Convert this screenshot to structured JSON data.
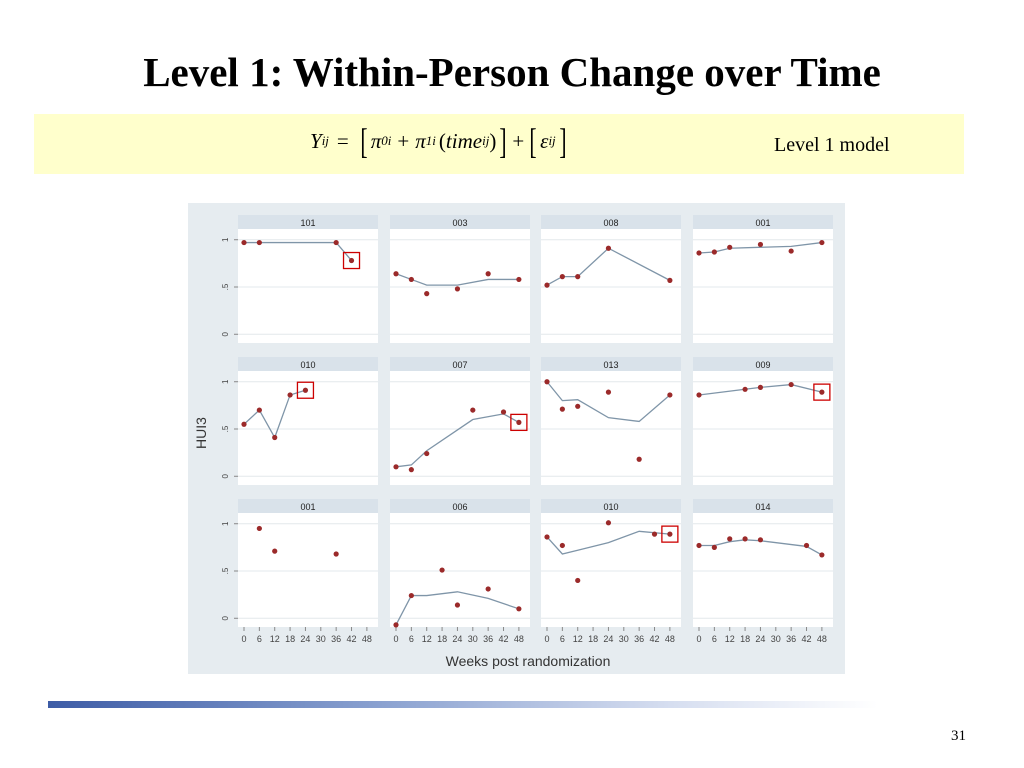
{
  "slide": {
    "title": "Level 1: Within-Person Change over Time",
    "model_label": "Level 1 model",
    "page_number": "31",
    "equation": {
      "Y": "Y",
      "Y_sub": "ij",
      "equals": "=",
      "pi": "π",
      "pi0_sub": "0i",
      "plus": "+",
      "pi1_sub": "1i",
      "time": "time",
      "time_sub": "ij",
      "eps": "ε",
      "eps_sub": "ij"
    }
  },
  "colors": {
    "model_box": "#ffffcc",
    "figure_bg": "#e6ecf0",
    "strip": "#d9e2ea",
    "point": "#9b2a2a",
    "line": "#7f95a8",
    "highlight": "#cc0000"
  },
  "chart_data": {
    "type": "scatter",
    "layout": "small-multiples 3x4",
    "xlabel": "Weeks post randomization",
    "ylabel": "HUI3",
    "xticks": [
      "0",
      "6",
      "12",
      "18",
      "24",
      "30",
      "36",
      "42",
      "48"
    ],
    "yticks": [
      "0",
      ".5",
      "1"
    ],
    "xlim": [
      0,
      50
    ],
    "ylim": [
      -0.05,
      1.05
    ],
    "panels": [
      {
        "label": "101",
        "points": [
          [
            0,
            0.97
          ],
          [
            6,
            0.97
          ],
          [
            36,
            0.97
          ],
          [
            42,
            0.78
          ]
        ],
        "fit": [
          [
            0,
            0.97
          ],
          [
            6,
            0.97
          ],
          [
            36,
            0.97
          ],
          [
            42,
            0.78
          ]
        ],
        "highlight": [
          42,
          0.78
        ]
      },
      {
        "label": "003",
        "points": [
          [
            0,
            0.64
          ],
          [
            6,
            0.58
          ],
          [
            12,
            0.43
          ],
          [
            24,
            0.48
          ],
          [
            36,
            0.64
          ],
          [
            48,
            0.58
          ]
        ],
        "fit": [
          [
            0,
            0.64
          ],
          [
            6,
            0.58
          ],
          [
            12,
            0.52
          ],
          [
            24,
            0.52
          ],
          [
            36,
            0.58
          ],
          [
            48,
            0.58
          ]
        ],
        "highlight": null
      },
      {
        "label": "008",
        "points": [
          [
            0,
            0.52
          ],
          [
            6,
            0.61
          ],
          [
            12,
            0.61
          ],
          [
            24,
            0.91
          ],
          [
            48,
            0.57
          ]
        ],
        "fit": [
          [
            0,
            0.52
          ],
          [
            6,
            0.61
          ],
          [
            12,
            0.61
          ],
          [
            24,
            0.91
          ],
          [
            48,
            0.57
          ]
        ],
        "highlight": null
      },
      {
        "label": "001",
        "points": [
          [
            0,
            0.86
          ],
          [
            6,
            0.87
          ],
          [
            12,
            0.92
          ],
          [
            24,
            0.95
          ],
          [
            36,
            0.88
          ],
          [
            48,
            0.97
          ]
        ],
        "fit": [
          [
            0,
            0.86
          ],
          [
            6,
            0.87
          ],
          [
            12,
            0.91
          ],
          [
            36,
            0.93
          ],
          [
            48,
            0.97
          ]
        ],
        "highlight": null
      },
      {
        "label": "010",
        "points": [
          [
            0,
            0.55
          ],
          [
            6,
            0.7
          ],
          [
            12,
            0.41
          ],
          [
            18,
            0.86
          ],
          [
            24,
            0.91
          ]
        ],
        "fit": [
          [
            0,
            0.55
          ],
          [
            6,
            0.7
          ],
          [
            12,
            0.41
          ],
          [
            18,
            0.86
          ],
          [
            24,
            0.91
          ]
        ],
        "highlight": [
          24,
          0.91
        ]
      },
      {
        "label": "007",
        "points": [
          [
            0,
            0.1
          ],
          [
            6,
            0.07
          ],
          [
            12,
            0.24
          ],
          [
            30,
            0.7
          ],
          [
            42,
            0.68
          ],
          [
            48,
            0.57
          ]
        ],
        "fit": [
          [
            0,
            0.1
          ],
          [
            6,
            0.12
          ],
          [
            12,
            0.27
          ],
          [
            30,
            0.6
          ],
          [
            42,
            0.66
          ],
          [
            48,
            0.57
          ]
        ],
        "highlight": [
          48,
          0.57
        ]
      },
      {
        "label": "013",
        "points": [
          [
            0,
            1.0
          ],
          [
            6,
            0.71
          ],
          [
            12,
            0.74
          ],
          [
            24,
            0.89
          ],
          [
            36,
            0.18
          ],
          [
            48,
            0.86
          ]
        ],
        "fit": [
          [
            0,
            1.0
          ],
          [
            6,
            0.8
          ],
          [
            12,
            0.81
          ],
          [
            24,
            0.62
          ],
          [
            36,
            0.58
          ],
          [
            48,
            0.86
          ]
        ],
        "highlight": null
      },
      {
        "label": "009",
        "points": [
          [
            0,
            0.86
          ],
          [
            18,
            0.92
          ],
          [
            24,
            0.94
          ],
          [
            36,
            0.97
          ],
          [
            48,
            0.89
          ]
        ],
        "fit": [
          [
            0,
            0.86
          ],
          [
            18,
            0.92
          ],
          [
            24,
            0.94
          ],
          [
            36,
            0.97
          ],
          [
            48,
            0.89
          ]
        ],
        "highlight": [
          48,
          0.89
        ]
      },
      {
        "label": "001",
        "points": [
          [
            6,
            0.95
          ],
          [
            12,
            0.71
          ],
          [
            36,
            0.68
          ]
        ],
        "fit": [],
        "highlight": null
      },
      {
        "label": "006",
        "points": [
          [
            0,
            -0.07
          ],
          [
            6,
            0.24
          ],
          [
            18,
            0.51
          ],
          [
            24,
            0.14
          ],
          [
            36,
            0.31
          ],
          [
            48,
            0.1
          ]
        ],
        "fit": [
          [
            0,
            -0.07
          ],
          [
            6,
            0.24
          ],
          [
            12,
            0.24
          ],
          [
            24,
            0.28
          ],
          [
            36,
            0.21
          ],
          [
            48,
            0.1
          ]
        ],
        "highlight": null
      },
      {
        "label": "010",
        "points": [
          [
            0,
            0.86
          ],
          [
            6,
            0.77
          ],
          [
            12,
            0.4
          ],
          [
            24,
            1.01
          ],
          [
            42,
            0.89
          ],
          [
            48,
            0.89
          ]
        ],
        "fit": [
          [
            0,
            0.86
          ],
          [
            6,
            0.68
          ],
          [
            12,
            0.72
          ],
          [
            24,
            0.8
          ],
          [
            36,
            0.92
          ],
          [
            48,
            0.89
          ]
        ],
        "highlight": [
          48,
          0.89
        ]
      },
      {
        "label": "014",
        "points": [
          [
            0,
            0.77
          ],
          [
            6,
            0.75
          ],
          [
            12,
            0.84
          ],
          [
            18,
            0.84
          ],
          [
            24,
            0.83
          ],
          [
            42,
            0.77
          ],
          [
            48,
            0.67
          ]
        ],
        "fit": [
          [
            0,
            0.77
          ],
          [
            6,
            0.77
          ],
          [
            12,
            0.81
          ],
          [
            18,
            0.83
          ],
          [
            24,
            0.82
          ],
          [
            42,
            0.76
          ],
          [
            48,
            0.67
          ]
        ],
        "highlight": null
      }
    ]
  }
}
